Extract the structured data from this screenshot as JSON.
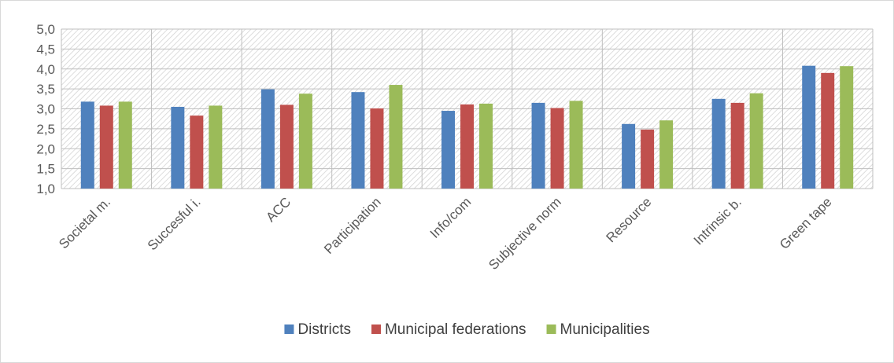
{
  "chart_data": {
    "type": "bar",
    "title": "",
    "xlabel": "",
    "ylabel": "",
    "ylim": [
      1.0,
      5.0
    ],
    "ytick_step": 0.5,
    "yticks": [
      "1,0",
      "1,5",
      "2,0",
      "2,5",
      "3,0",
      "3,5",
      "4,0",
      "4,5",
      "5,0"
    ],
    "grid": true,
    "legend_position": "bottom",
    "categories": [
      "Societal m.",
      "Succesful i.",
      "ACC",
      "Participation",
      "Info/com",
      "Subjective norm",
      "Resource",
      "Intrinsic b.",
      "Green tape"
    ],
    "series": [
      {
        "name": "Districts",
        "color": "#4f81bd",
        "values": [
          3.18,
          3.05,
          3.49,
          3.42,
          2.95,
          3.15,
          2.62,
          3.25,
          4.08
        ]
      },
      {
        "name": "Municipal federations",
        "color": "#c0504d",
        "values": [
          3.08,
          2.83,
          3.1,
          3.01,
          3.11,
          3.02,
          2.48,
          3.15,
          3.9
        ]
      },
      {
        "name": "Municipalities",
        "color": "#9bbb59",
        "values": [
          3.18,
          3.08,
          3.38,
          3.6,
          3.13,
          3.2,
          2.71,
          3.39,
          4.07
        ]
      }
    ]
  }
}
